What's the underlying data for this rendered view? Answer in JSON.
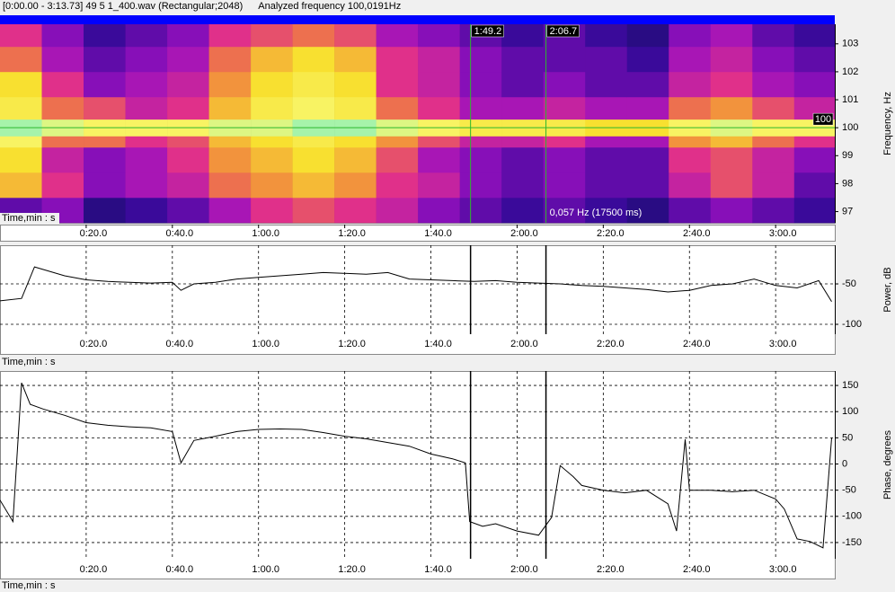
{
  "header": {
    "file": "[0:00.00 - 3:13.73] 49 5 1_400.wav (Rectangular;2048)",
    "analyzed": "Analyzed frequency 100,0191Hz"
  },
  "chart_data": [
    {
      "type": "heatmap",
      "x_label": "Time,min : s",
      "y_label": "Frequency, Hz",
      "xlim": [
        0,
        193.73
      ],
      "ylim": [
        96.6,
        103.7
      ],
      "xticks": [
        {
          "value": 20,
          "label": "0:20.0"
        },
        {
          "value": 40,
          "label": "0:40.0"
        },
        {
          "value": 60,
          "label": "1:00.0"
        },
        {
          "value": 80,
          "label": "1:20.0"
        },
        {
          "value": 100,
          "label": "1:40.0"
        },
        {
          "value": 120,
          "label": "2:00.0"
        },
        {
          "value": 140,
          "label": "2:20.0"
        },
        {
          "value": 160,
          "label": "2:40.0"
        },
        {
          "value": 180,
          "label": "3:00.0"
        }
      ],
      "yticks": [
        97,
        98,
        99,
        100,
        101,
        102,
        103
      ],
      "x_bins": [
        0,
        9.7,
        19.4,
        29.1,
        38.8,
        48.5,
        58.2,
        67.9,
        77.6,
        87.3,
        97,
        106.7,
        116.4,
        126.1,
        135.8,
        145.5,
        155.2,
        164.9,
        174.6,
        184.3,
        193.73
      ],
      "y_bins": [
        96.6,
        97.5,
        98.4,
        99.3,
        99.7,
        100.3,
        101.1,
        102,
        102.9,
        103.7
      ],
      "z": [
        [
          0.3,
          0.35,
          0.2,
          0.25,
          0.3,
          0.4,
          0.5,
          0.55,
          0.5,
          0.45,
          0.35,
          0.3,
          0.25,
          0.3,
          0.25,
          0.2,
          0.3,
          0.35,
          0.3,
          0.25
        ],
        [
          0.7,
          0.5,
          0.35,
          0.4,
          0.45,
          0.6,
          0.65,
          0.7,
          0.65,
          0.5,
          0.45,
          0.35,
          0.3,
          0.35,
          0.3,
          0.3,
          0.45,
          0.55,
          0.45,
          0.3
        ],
        [
          0.75,
          0.45,
          0.35,
          0.4,
          0.5,
          0.65,
          0.7,
          0.75,
          0.7,
          0.55,
          0.4,
          0.35,
          0.3,
          0.35,
          0.3,
          0.3,
          0.5,
          0.55,
          0.45,
          0.35
        ],
        [
          0.85,
          0.6,
          0.6,
          0.5,
          0.55,
          0.7,
          0.75,
          0.8,
          0.75,
          0.65,
          0.55,
          0.45,
          0.45,
          0.5,
          0.4,
          0.4,
          0.65,
          0.7,
          0.6,
          0.5
        ],
        [
          0.95,
          0.9,
          0.85,
          0.85,
          0.85,
          0.9,
          0.9,
          0.95,
          0.95,
          0.9,
          0.85,
          0.8,
          0.8,
          0.8,
          0.75,
          0.75,
          0.85,
          0.9,
          0.85,
          0.85
        ],
        [
          0.8,
          0.6,
          0.55,
          0.45,
          0.5,
          0.7,
          0.8,
          0.85,
          0.8,
          0.6,
          0.5,
          0.4,
          0.4,
          0.45,
          0.4,
          0.4,
          0.6,
          0.65,
          0.55,
          0.45
        ],
        [
          0.75,
          0.5,
          0.35,
          0.4,
          0.45,
          0.65,
          0.75,
          0.8,
          0.75,
          0.5,
          0.45,
          0.35,
          0.3,
          0.35,
          0.3,
          0.3,
          0.45,
          0.5,
          0.4,
          0.35
        ],
        [
          0.6,
          0.4,
          0.3,
          0.35,
          0.4,
          0.6,
          0.7,
          0.75,
          0.7,
          0.5,
          0.45,
          0.35,
          0.3,
          0.3,
          0.3,
          0.25,
          0.4,
          0.45,
          0.35,
          0.3
        ],
        [
          0.5,
          0.35,
          0.25,
          0.3,
          0.35,
          0.5,
          0.55,
          0.6,
          0.55,
          0.4,
          0.35,
          0.3,
          0.25,
          0.3,
          0.25,
          0.2,
          0.35,
          0.4,
          0.3,
          0.25
        ]
      ],
      "colormap": [
        "#000012",
        "#101060",
        "#3a0a9a",
        "#9a10c0",
        "#e0308a",
        "#f08040",
        "#f8e030",
        "#f8f870",
        "#70f0d0"
      ],
      "cursors": [
        {
          "value": 109.2,
          "label": "1:49.2"
        },
        {
          "value": 126.7,
          "label": "2:06.7"
        }
      ],
      "cursor_color": "#2db82d",
      "marker_frequency": 100,
      "annotation": "0,057 Hz (17500 ms)",
      "grid": false
    },
    {
      "type": "line",
      "x_label": "Time,min : s",
      "y_label": "Power, dB",
      "color": "#000000",
      "xlim": [
        0,
        193.73
      ],
      "ylim": [
        -112.2,
        -2.2
      ],
      "xticks": [
        {
          "value": 20,
          "label": "0:20.0"
        },
        {
          "value": 40,
          "label": "0:40.0"
        },
        {
          "value": 60,
          "label": "1:00.0"
        },
        {
          "value": 80,
          "label": "1:20.0"
        },
        {
          "value": 100,
          "label": "1:40.0"
        },
        {
          "value": 120,
          "label": "2:00.0"
        },
        {
          "value": 140,
          "label": "2:20.0"
        },
        {
          "value": 160,
          "label": "2:40.0"
        },
        {
          "value": 180,
          "label": "3:00.0"
        }
      ],
      "yticks": [
        -50,
        -100
      ],
      "x": [
        0,
        5,
        8,
        15,
        20,
        25,
        30,
        35,
        40,
        42,
        45,
        50,
        55,
        60,
        65,
        70,
        75,
        80,
        85,
        90,
        95,
        100,
        105,
        110,
        115,
        120,
        125,
        130,
        135,
        140,
        145,
        150,
        155,
        160,
        165,
        170,
        175,
        180,
        185,
        190,
        193
      ],
      "values": [
        -71,
        -68,
        -29,
        -40,
        -45,
        -47,
        -48,
        -49,
        -48,
        -58,
        -50,
        -48,
        -44,
        -42,
        -40,
        -38,
        -36,
        -37,
        -38,
        -36,
        -44,
        -45,
        -46,
        -47,
        -46,
        -48,
        -49,
        -50,
        -52,
        -53,
        -55,
        -57,
        -60,
        -58,
        -52,
        -50,
        -44,
        -52,
        -55,
        -46,
        -72
      ],
      "grid": true
    },
    {
      "type": "line",
      "x_label": "Time,min : s",
      "y_label": "Phase, degrees",
      "color": "#000000",
      "xlim": [
        0,
        193.73
      ],
      "ylim": [
        -181,
        177.6
      ],
      "xticks": [
        {
          "value": 20,
          "label": "0:20.0"
        },
        {
          "value": 40,
          "label": "0:40.0"
        },
        {
          "value": 60,
          "label": "1:00.0"
        },
        {
          "value": 80,
          "label": "1:20.0"
        },
        {
          "value": 100,
          "label": "1:40.0"
        },
        {
          "value": 120,
          "label": "2:00.0"
        },
        {
          "value": 140,
          "label": "2:20.0"
        },
        {
          "value": 160,
          "label": "2:40.0"
        },
        {
          "value": 180,
          "label": "3:00.0"
        }
      ],
      "yticks": [
        150,
        100,
        50,
        0,
        -50,
        -100,
        -150
      ],
      "x": [
        0,
        3,
        5,
        7,
        10,
        15,
        20,
        25,
        30,
        35,
        40,
        42,
        45,
        50,
        55,
        60,
        65,
        70,
        75,
        80,
        85,
        90,
        95,
        100,
        105,
        108,
        109,
        112,
        115,
        120,
        125,
        128,
        130,
        133,
        135,
        140,
        145,
        150,
        155,
        157,
        159,
        160,
        165,
        170,
        175,
        180,
        182,
        185,
        188,
        191,
        193
      ],
      "values": [
        -69,
        -110,
        155,
        114,
        105,
        93,
        79,
        74,
        71,
        69,
        62,
        2,
        45,
        53,
        62,
        66,
        67,
        66,
        60,
        53,
        48,
        41,
        34,
        19,
        10,
        2,
        -110,
        -119,
        -114,
        -128,
        -136,
        -102,
        -3,
        -24,
        -41,
        -50,
        -55,
        -50,
        -76,
        -128,
        47,
        -50,
        -50,
        -53,
        -50,
        -67,
        -86,
        -143,
        -148,
        -160,
        50
      ],
      "grid": true
    }
  ]
}
